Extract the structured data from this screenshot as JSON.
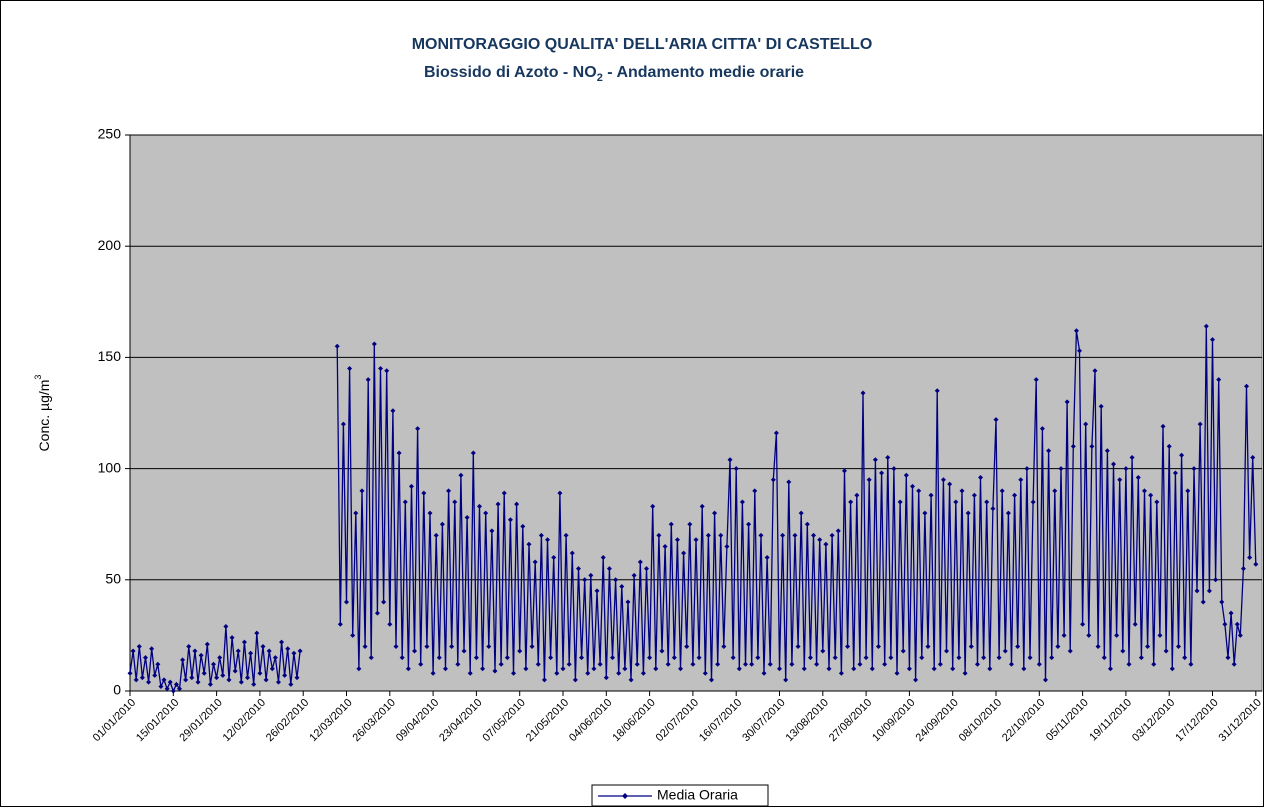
{
  "chart_data": {
    "type": "line",
    "title": "MONITORAGGIO QUALITA' DELL'ARIA CITTA' DI CASTELLO",
    "subtitle": {
      "prefix": "Biossido di Azoto - NO",
      "subscript": "2",
      "suffix": " - Andamento medie orarie"
    },
    "y_label": {
      "text": "Conc.  µg/m",
      "superscript": "3"
    },
    "xlim": [
      0,
      366
    ],
    "xticks": [
      {
        "value": 0,
        "label": "01/01/2010"
      },
      {
        "value": 14,
        "label": "15/01/2010"
      },
      {
        "value": 28,
        "label": "29/01/2010"
      },
      {
        "value": 42,
        "label": "12/02/2010"
      },
      {
        "value": 56,
        "label": "26/02/2010"
      },
      {
        "value": 70,
        "label": "12/03/2010"
      },
      {
        "value": 84,
        "label": "26/03/2010"
      },
      {
        "value": 98,
        "label": "09/04/2010"
      },
      {
        "value": 112,
        "label": "23/04/2010"
      },
      {
        "value": 126,
        "label": "07/05/2010"
      },
      {
        "value": 140,
        "label": "21/05/2010"
      },
      {
        "value": 154,
        "label": "04/06/2010"
      },
      {
        "value": 168,
        "label": "18/06/2010"
      },
      {
        "value": 182,
        "label": "02/07/2010"
      },
      {
        "value": 196,
        "label": "16/07/2010"
      },
      {
        "value": 210,
        "label": "30/07/2010"
      },
      {
        "value": 224,
        "label": "13/08/2010"
      },
      {
        "value": 238,
        "label": "27/08/2010"
      },
      {
        "value": 252,
        "label": "10/09/2010"
      },
      {
        "value": 266,
        "label": "24/09/2010"
      },
      {
        "value": 280,
        "label": "08/10/2010"
      },
      {
        "value": 294,
        "label": "22/10/2010"
      },
      {
        "value": 308,
        "label": "05/11/2010"
      },
      {
        "value": 322,
        "label": "19/11/2010"
      },
      {
        "value": 336,
        "label": "03/12/2010"
      },
      {
        "value": 350,
        "label": "17/12/2010"
      },
      {
        "value": 364,
        "label": "31/12/2010"
      }
    ],
    "ylim": [
      0,
      250
    ],
    "yticks": [
      0,
      50,
      100,
      150,
      200,
      250
    ],
    "grid": true,
    "background": "#c0c0c0",
    "legend": "bottom",
    "x": [
      0,
      1,
      2,
      3,
      4,
      5,
      6,
      7,
      8,
      9,
      10,
      11,
      12,
      13,
      14,
      15,
      16,
      17,
      18,
      19,
      20,
      21,
      22,
      23,
      24,
      25,
      26,
      27,
      28,
      29,
      30,
      31,
      32,
      33,
      34,
      35,
      36,
      37,
      38,
      39,
      40,
      41,
      42,
      43,
      44,
      45,
      46,
      47,
      48,
      49,
      50,
      51,
      52,
      53,
      54,
      55,
      56,
      57,
      58,
      59,
      60,
      61,
      62,
      63,
      64,
      65,
      66,
      67,
      68,
      69,
      70,
      71,
      72,
      73,
      74,
      75,
      76,
      77,
      78,
      79,
      80,
      81,
      82,
      83,
      84,
      85,
      86,
      87,
      88,
      89,
      90,
      91,
      92,
      93,
      94,
      95,
      96,
      97,
      98,
      99,
      100,
      101,
      102,
      103,
      104,
      105,
      106,
      107,
      108,
      109,
      110,
      111,
      112,
      113,
      114,
      115,
      116,
      117,
      118,
      119,
      120,
      121,
      122,
      123,
      124,
      125,
      126,
      127,
      128,
      129,
      130,
      131,
      132,
      133,
      134,
      135,
      136,
      137,
      138,
      139,
      140,
      141,
      142,
      143,
      144,
      145,
      146,
      147,
      148,
      149,
      150,
      151,
      152,
      153,
      154,
      155,
      156,
      157,
      158,
      159,
      160,
      161,
      162,
      163,
      164,
      165,
      166,
      167,
      168,
      169,
      170,
      171,
      172,
      173,
      174,
      175,
      176,
      177,
      178,
      179,
      180,
      181,
      182,
      183,
      184,
      185,
      186,
      187,
      188,
      189,
      190,
      191,
      192,
      193,
      194,
      195,
      196,
      197,
      198,
      199,
      200,
      201,
      202,
      203,
      204,
      205,
      206,
      207,
      208,
      209,
      210,
      211,
      212,
      213,
      214,
      215,
      216,
      217,
      218,
      219,
      220,
      221,
      222,
      223,
      224,
      225,
      226,
      227,
      228,
      229,
      230,
      231,
      232,
      233,
      234,
      235,
      236,
      237,
      238,
      239,
      240,
      241,
      242,
      243,
      244,
      245,
      246,
      247,
      248,
      249,
      250,
      251,
      252,
      253,
      254,
      255,
      256,
      257,
      258,
      259,
      260,
      261,
      262,
      263,
      264,
      265,
      266,
      267,
      268,
      269,
      270,
      271,
      272,
      273,
      274,
      275,
      276,
      277,
      278,
      279,
      280,
      281,
      282,
      283,
      284,
      285,
      286,
      287,
      288,
      289,
      290,
      291,
      292,
      293,
      294,
      295,
      296,
      297,
      298,
      299,
      300,
      301,
      302,
      303,
      304,
      305,
      306,
      307,
      308,
      309,
      310,
      311,
      312,
      313,
      314,
      315,
      316,
      317,
      318,
      319,
      320,
      321,
      322,
      323,
      324,
      325,
      326,
      327,
      328,
      329,
      330,
      331,
      332,
      333,
      334,
      335,
      336,
      337,
      338,
      339,
      340,
      341,
      342,
      343,
      344,
      345,
      346,
      347,
      348,
      349,
      350,
      351,
      352,
      353,
      354,
      355,
      356,
      357,
      358,
      359,
      360,
      361,
      362,
      363,
      364
    ],
    "series": [
      {
        "name": "Media Oraria",
        "color": "#000080",
        "values": [
          8,
          18,
          5,
          20,
          6,
          15,
          4,
          19,
          7,
          12,
          2,
          5,
          1,
          4,
          0,
          3,
          1,
          14,
          5,
          20,
          6,
          18,
          4,
          16,
          8,
          21,
          3,
          12,
          6,
          15,
          7,
          29,
          5,
          24,
          9,
          18,
          4,
          22,
          6,
          17,
          3,
          26,
          8,
          20,
          5,
          18,
          10,
          15,
          4,
          22,
          7,
          19,
          3,
          17,
          6,
          18,
          null,
          null,
          null,
          null,
          null,
          null,
          null,
          null,
          null,
          null,
          null,
          155,
          30,
          120,
          40,
          145,
          25,
          80,
          10,
          90,
          20,
          140,
          15,
          156,
          35,
          145,
          40,
          144,
          30,
          126,
          20,
          107,
          15,
          85,
          10,
          92,
          18,
          118,
          12,
          89,
          20,
          80,
          8,
          70,
          15,
          75,
          10,
          90,
          20,
          85,
          12,
          97,
          18,
          78,
          8,
          107,
          15,
          83,
          10,
          80,
          20,
          72,
          9,
          84,
          12,
          89,
          15,
          77,
          8,
          84,
          18,
          74,
          10,
          66,
          20,
          58,
          12,
          70,
          5,
          68,
          15,
          60,
          8,
          89,
          10,
          70,
          12,
          62,
          5,
          55,
          15,
          50,
          8,
          52,
          10,
          45,
          12,
          60,
          6,
          55,
          15,
          50,
          8,
          47,
          10,
          40,
          5,
          52,
          12,
          58,
          8,
          55,
          15,
          83,
          10,
          70,
          18,
          65,
          12,
          75,
          15,
          68,
          10,
          62,
          20,
          75,
          12,
          68,
          15,
          83,
          8,
          70,
          5,
          80,
          12,
          70,
          20,
          65,
          104,
          15,
          100,
          10,
          85,
          12,
          75,
          12,
          90,
          15,
          70,
          8,
          60,
          12,
          95,
          116,
          10,
          70,
          5,
          94,
          12,
          70,
          20,
          80,
          10,
          75,
          15,
          70,
          12,
          68,
          18,
          66,
          10,
          70,
          15,
          72,
          8,
          99,
          20,
          85,
          10,
          88,
          12,
          134,
          15,
          95,
          10,
          104,
          20,
          98,
          12,
          105,
          15,
          100,
          8,
          85,
          18,
          97,
          10,
          92,
          5,
          90,
          15,
          80,
          20,
          88,
          10,
          135,
          12,
          95,
          18,
          93,
          10,
          85,
          15,
          90,
          8,
          80,
          20,
          88,
          12,
          96,
          15,
          85,
          10,
          82,
          122,
          15,
          90,
          18,
          80,
          12,
          88,
          20,
          95,
          10,
          100,
          15,
          85,
          140,
          12,
          118,
          5,
          108,
          15,
          90,
          20,
          100,
          25,
          130,
          18,
          110,
          162,
          153,
          30,
          120,
          25,
          110,
          144,
          20,
          128,
          15,
          108,
          10,
          102,
          25,
          95,
          18,
          100,
          12,
          105,
          30,
          96,
          15,
          90,
          20,
          88,
          12,
          85,
          25,
          119,
          18,
          110,
          10,
          98,
          20,
          106,
          15,
          90,
          12,
          100,
          45,
          120,
          40,
          164,
          45,
          158,
          50,
          140,
          40,
          30,
          15,
          35,
          12,
          30,
          25,
          55,
          137,
          60,
          105,
          57
        ]
      }
    ]
  }
}
